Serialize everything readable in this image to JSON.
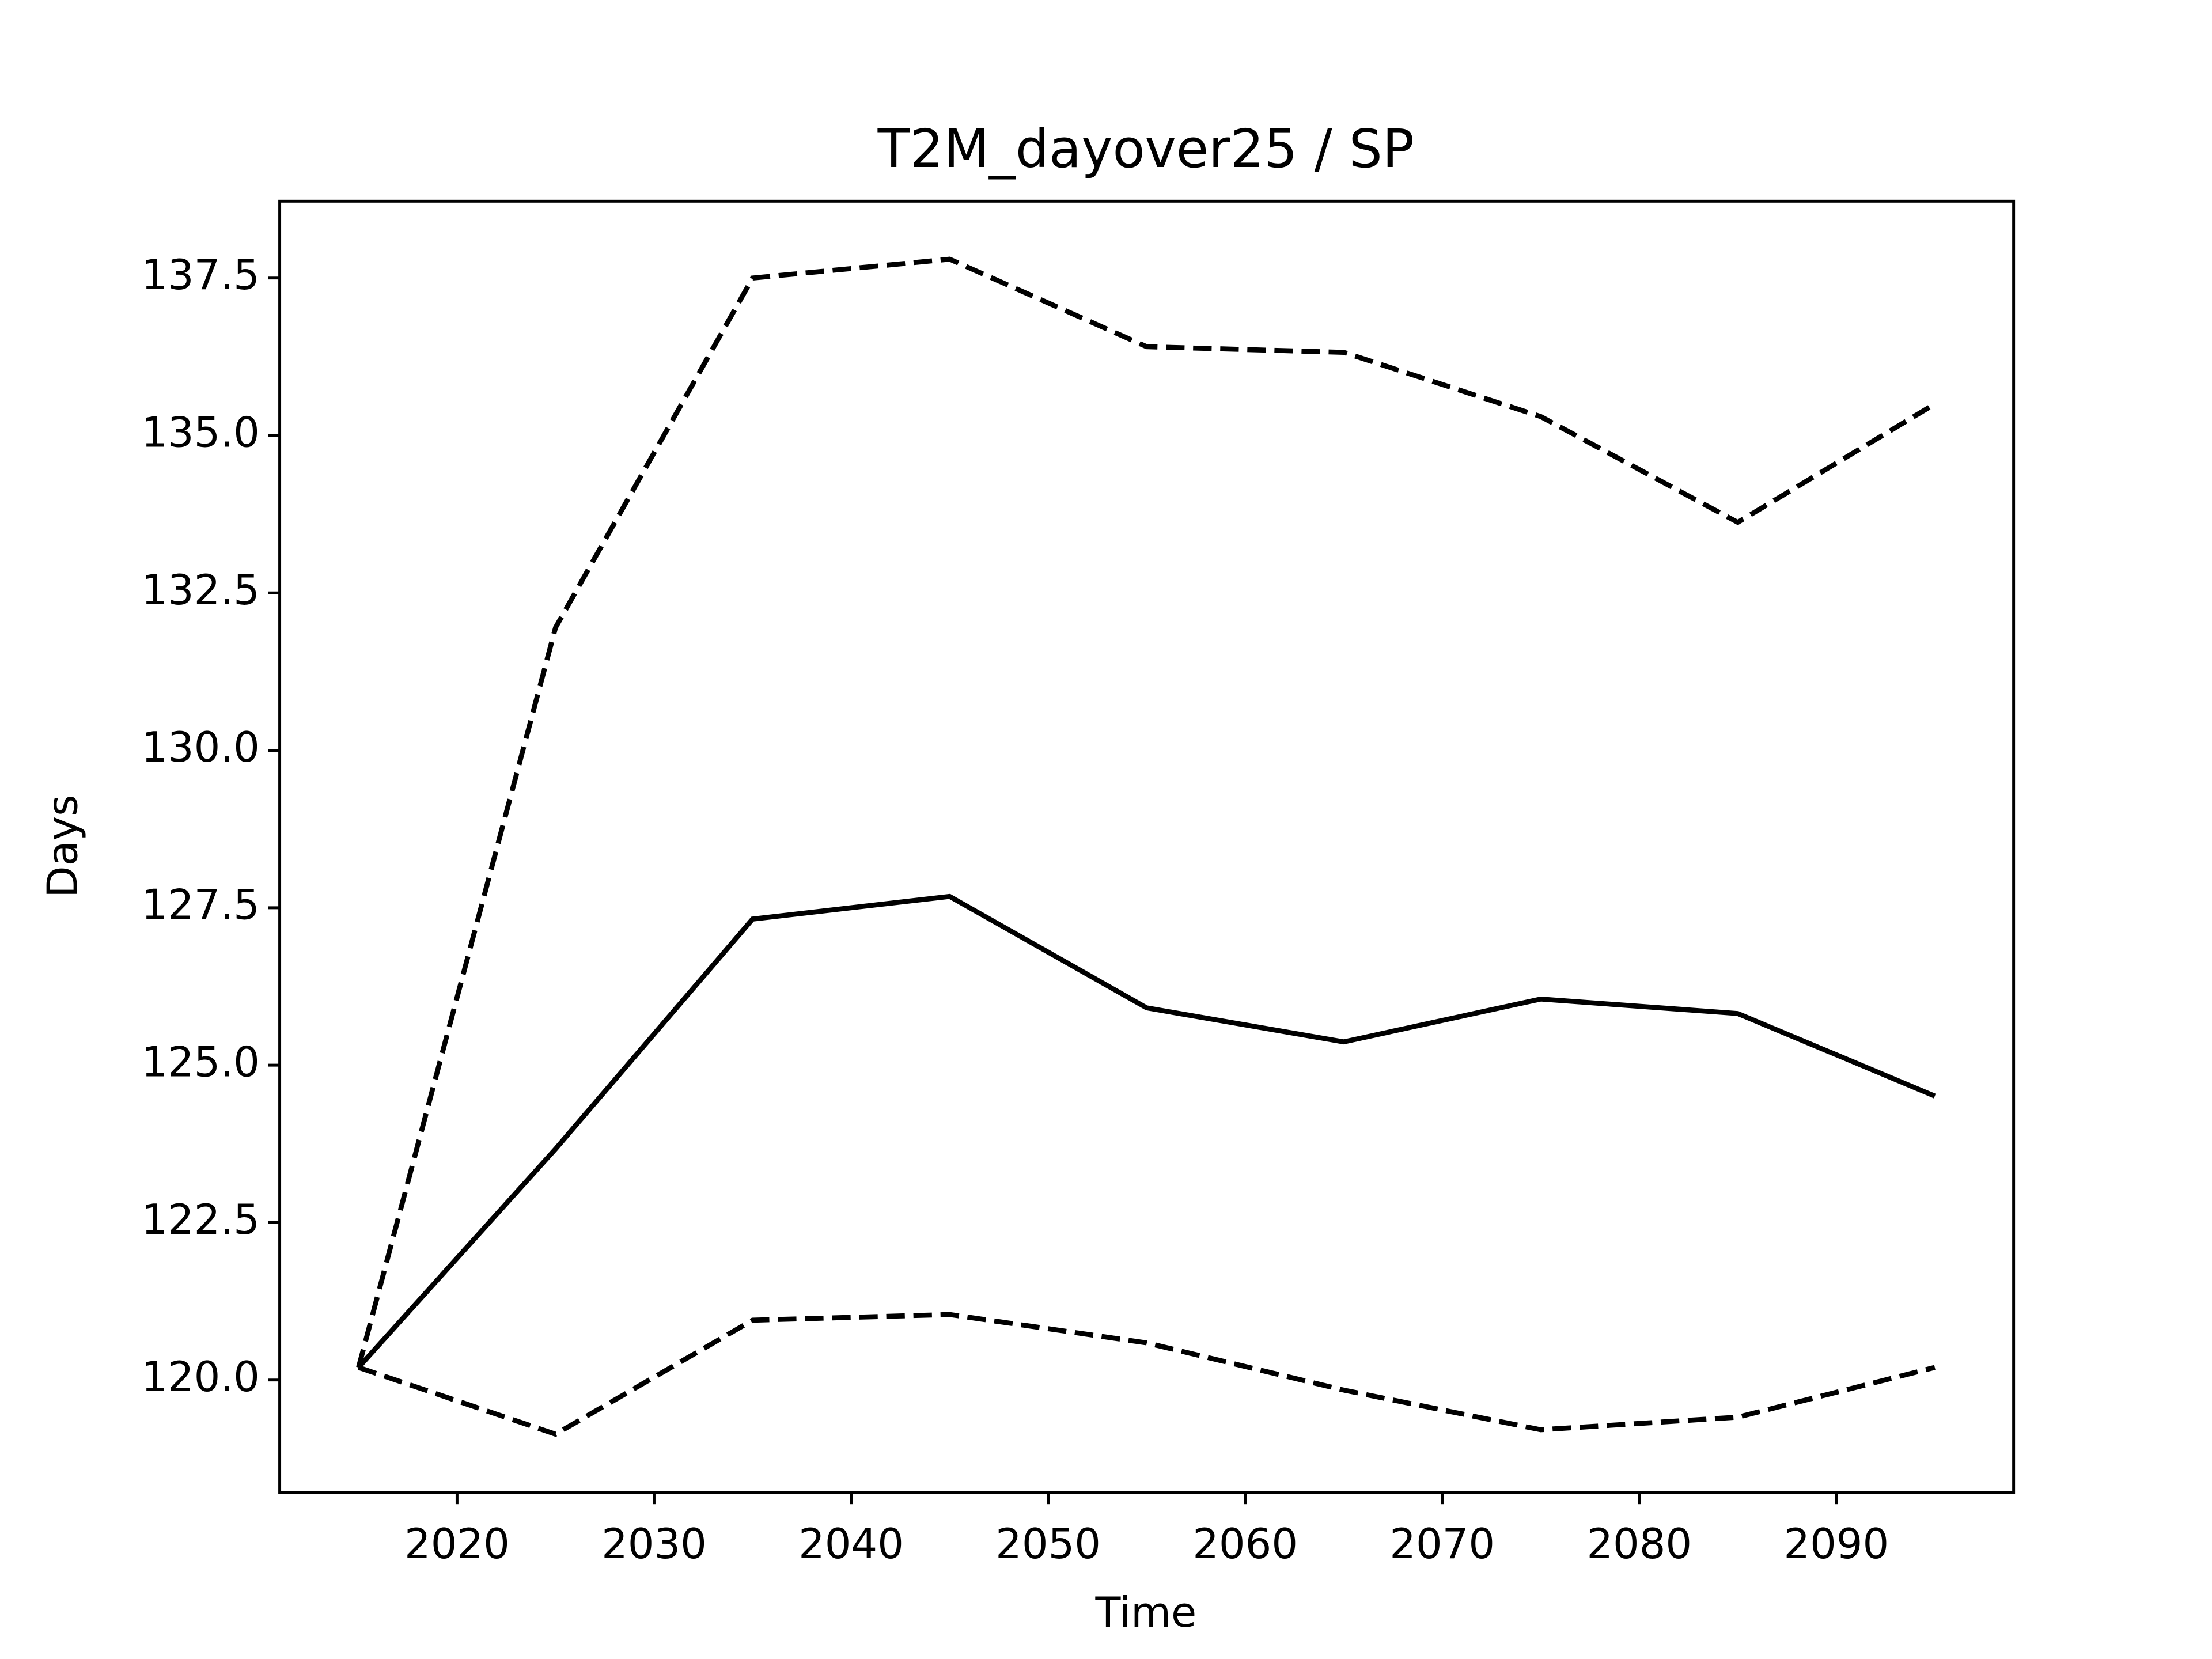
{
  "chart_data": {
    "type": "line",
    "title": "T2M_dayover25 / SP",
    "x_label": "Time",
    "y_label": "Days",
    "x": [
      2015,
      2025,
      2035,
      2045,
      2055,
      2065,
      2075,
      2085,
      2095
    ],
    "series": [
      {
        "color": "#000000",
        "dash": "solid",
        "values": [
          120.2,
          123.67,
          127.32,
          127.68,
          125.91,
          125.37,
          126.05,
          125.82,
          124.51
        ]
      },
      {
        "color": "#000000",
        "dash": "dashed",
        "values": [
          120.2,
          131.95,
          137.5,
          137.8,
          136.41,
          136.32,
          135.3,
          133.62,
          135.5
        ]
      },
      {
        "color": "#000000",
        "dash": "dashed",
        "values": [
          120.2,
          119.14,
          120.95,
          121.04,
          120.59,
          119.84,
          119.21,
          119.41,
          120.2
        ]
      }
    ],
    "xlim": [
      2011,
      2099
    ],
    "xticks": [
      2020,
      2030,
      2040,
      2050,
      2060,
      2070,
      2080,
      2090
    ],
    "ylim": [
      118.21,
      138.72
    ],
    "yticks": [
      {
        "value": 120,
        "label": "120.0"
      },
      122.5,
      {
        "value": 125,
        "label": "125.0"
      },
      127.5,
      {
        "value": 130,
        "label": "130.0"
      },
      132.5,
      {
        "value": 135,
        "label": "135.0"
      },
      137.5
    ],
    "grid": false
  }
}
